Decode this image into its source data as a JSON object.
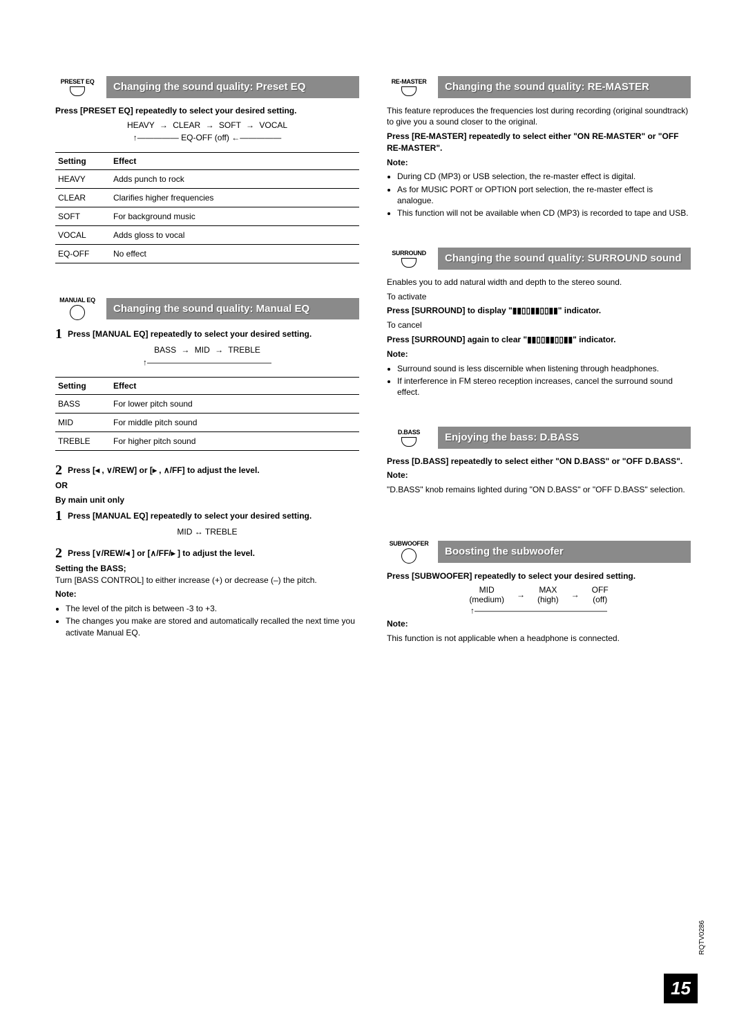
{
  "presetEq": {
    "btn": "PRESET EQ",
    "title": "Changing the sound quality: Preset EQ",
    "instruction": "Press [PRESET EQ] repeatedly to select your desired setting.",
    "flowItems": [
      "HEAVY",
      "CLEAR",
      "SOFT",
      "VOCAL"
    ],
    "flowOff": "EQ-OFF (off)",
    "tableHeaders": [
      "Setting",
      "Effect"
    ],
    "rows": [
      [
        "HEAVY",
        "Adds punch to rock"
      ],
      [
        "CLEAR",
        "Clarifies higher frequencies"
      ],
      [
        "SOFT",
        "For background music"
      ],
      [
        "VOCAL",
        "Adds gloss to vocal"
      ],
      [
        "EQ-OFF",
        "No effect"
      ]
    ]
  },
  "manualEq": {
    "btn": "MANUAL EQ",
    "title": "Changing the sound quality: Manual EQ",
    "step1": "Press [MANUAL EQ] repeatedly to select your desired setting.",
    "flowItems": [
      "BASS",
      "MID",
      "TREBLE"
    ],
    "tableHeaders": [
      "Setting",
      "Effect"
    ],
    "rows": [
      [
        "BASS",
        "For lower pitch sound"
      ],
      [
        "MID",
        "For middle pitch sound"
      ],
      [
        "TREBLE",
        "For higher pitch sound"
      ]
    ],
    "step2": "Press [◂ , ∨/REW] or [▸ , ∧/FF] to adjust the level.",
    "or": "OR",
    "byMain": "By main unit only",
    "mainStep1": "Press [MANUAL EQ] repeatedly to select your desired setting.",
    "mainFlow": "MID ↔ TREBLE",
    "mainStep2": "Press [∨/REW/◂  ] or [∧/FF/▸  ] to adjust the level.",
    "bassSettingLabel": "Setting the BASS;",
    "bassSettingText": "Turn [BASS CONTROL] to either increase (+) or decrease (–) the pitch.",
    "noteLabel": "Note:",
    "notes": [
      "The level of the pitch is between -3 to +3.",
      "The changes you make are stored and automatically recalled the next time you activate Manual EQ."
    ]
  },
  "remaster": {
    "btn": "RE-MASTER",
    "title": "Changing the sound quality: RE-MASTER",
    "intro": "This feature reproduces the frequencies lost during recording (original soundtrack) to give you a sound closer to the original.",
    "instruction": "Press [RE-MASTER] repeatedly to select either \"ON RE-MASTER\" or \"OFF RE-MASTER\".",
    "noteLabel": "Note:",
    "notes": [
      "During CD (MP3) or USB selection, the re-master effect is digital.",
      "As for MUSIC PORT or OPTION port selection, the re-master effect is analogue.",
      "This function will not be available when CD (MP3) is recorded to tape and USB."
    ]
  },
  "surround": {
    "btn": "SURROUND",
    "title": "Changing the sound quality: SURROUND sound",
    "intro": "Enables you to add natural width and depth to the stereo sound.",
    "activateLabel": "To activate",
    "activateText": "Press [SURROUND] to display \"▮▮▯▯▮▮▯▯▮▮\" indicator.",
    "cancelLabel": "To cancel",
    "cancelText": "Press [SURROUND] again to clear \"▮▮▯▯▮▮▯▯▮▮\" indicator.",
    "noteLabel": "Note:",
    "notes": [
      "Surround sound is less discernible when listening through headphones.",
      "If interference in FM stereo reception increases, cancel the surround sound effect."
    ]
  },
  "dbass": {
    "btn": "D.BASS",
    "title": "Enjoying the bass: D.BASS",
    "instruction": "Press [D.BASS] repeatedly to select either \"ON D.BASS\" or \"OFF D.BASS\".",
    "noteLabel": "Note:",
    "noteText": "\"D.BASS\" knob remains lighted during \"ON D.BASS\" or \"OFF D.BASS\" selection."
  },
  "subwoofer": {
    "btn": "SUBWOOFER",
    "title": "Boosting the subwoofer",
    "instruction": "Press [SUBWOOFER] repeatedly to select your desired setting.",
    "flow": [
      {
        "main": "MID",
        "sub": "(medium)"
      },
      {
        "main": "MAX",
        "sub": "(high)"
      },
      {
        "main": "OFF",
        "sub": "(off)"
      }
    ],
    "noteLabel": "Note:",
    "noteText": "This function is not applicable when a headphone is connected."
  },
  "pageNum": "15",
  "code": "RQTV0286"
}
